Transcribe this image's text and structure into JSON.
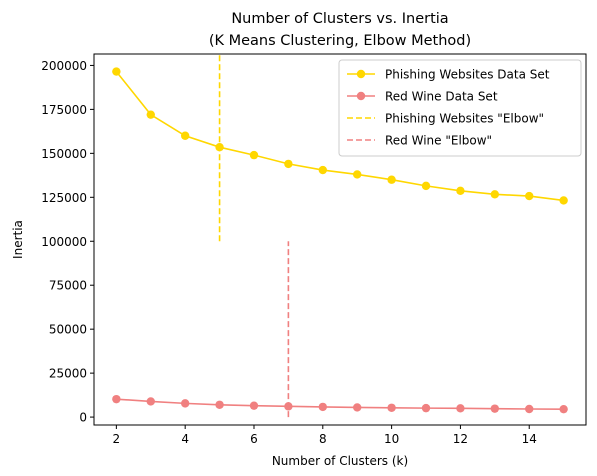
{
  "chart_data": {
    "type": "line",
    "title_lines": [
      "Number of Clusters vs. Inertia",
      "(K Means Clustering, Elbow Method)"
    ],
    "xlabel": "Number of Clusters (k)",
    "ylabel": "Inertia",
    "xlim": [
      1.35,
      15.65
    ],
    "ylim": [
      -4500,
      206500
    ],
    "xticks": [
      2,
      4,
      6,
      8,
      10,
      12,
      14
    ],
    "yticks": [
      0,
      25000,
      50000,
      75000,
      100000,
      125000,
      150000,
      175000,
      200000
    ],
    "x": [
      2,
      3,
      4,
      5,
      6,
      7,
      8,
      9,
      10,
      11,
      12,
      13,
      14,
      15
    ],
    "series": [
      {
        "name": "Phishing Websites Data Set",
        "color": "#FFD700",
        "style": "line-marker",
        "values": [
          196500,
          172000,
          160000,
          153500,
          149000,
          144000,
          140500,
          138000,
          135000,
          131500,
          128700,
          126700,
          125700,
          123200
        ]
      },
      {
        "name": "Red Wine Data Set",
        "color": "#F08080",
        "style": "line-marker",
        "values": [
          10200,
          8900,
          7800,
          7000,
          6500,
          6100,
          5800,
          5500,
          5300,
          5100,
          5000,
          4800,
          4600,
          4500
        ]
      }
    ],
    "vlines": [
      {
        "name": "Phishing Websites \"Elbow\"",
        "color": "#FFD700",
        "x": 5,
        "ymin": 100000,
        "ymax": 206500
      },
      {
        "name": "Red Wine \"Elbow\"",
        "color": "#F08080",
        "x": 7,
        "ymin": 0,
        "ymax": 100000
      }
    ],
    "legend": "top-right",
    "grid": false
  }
}
